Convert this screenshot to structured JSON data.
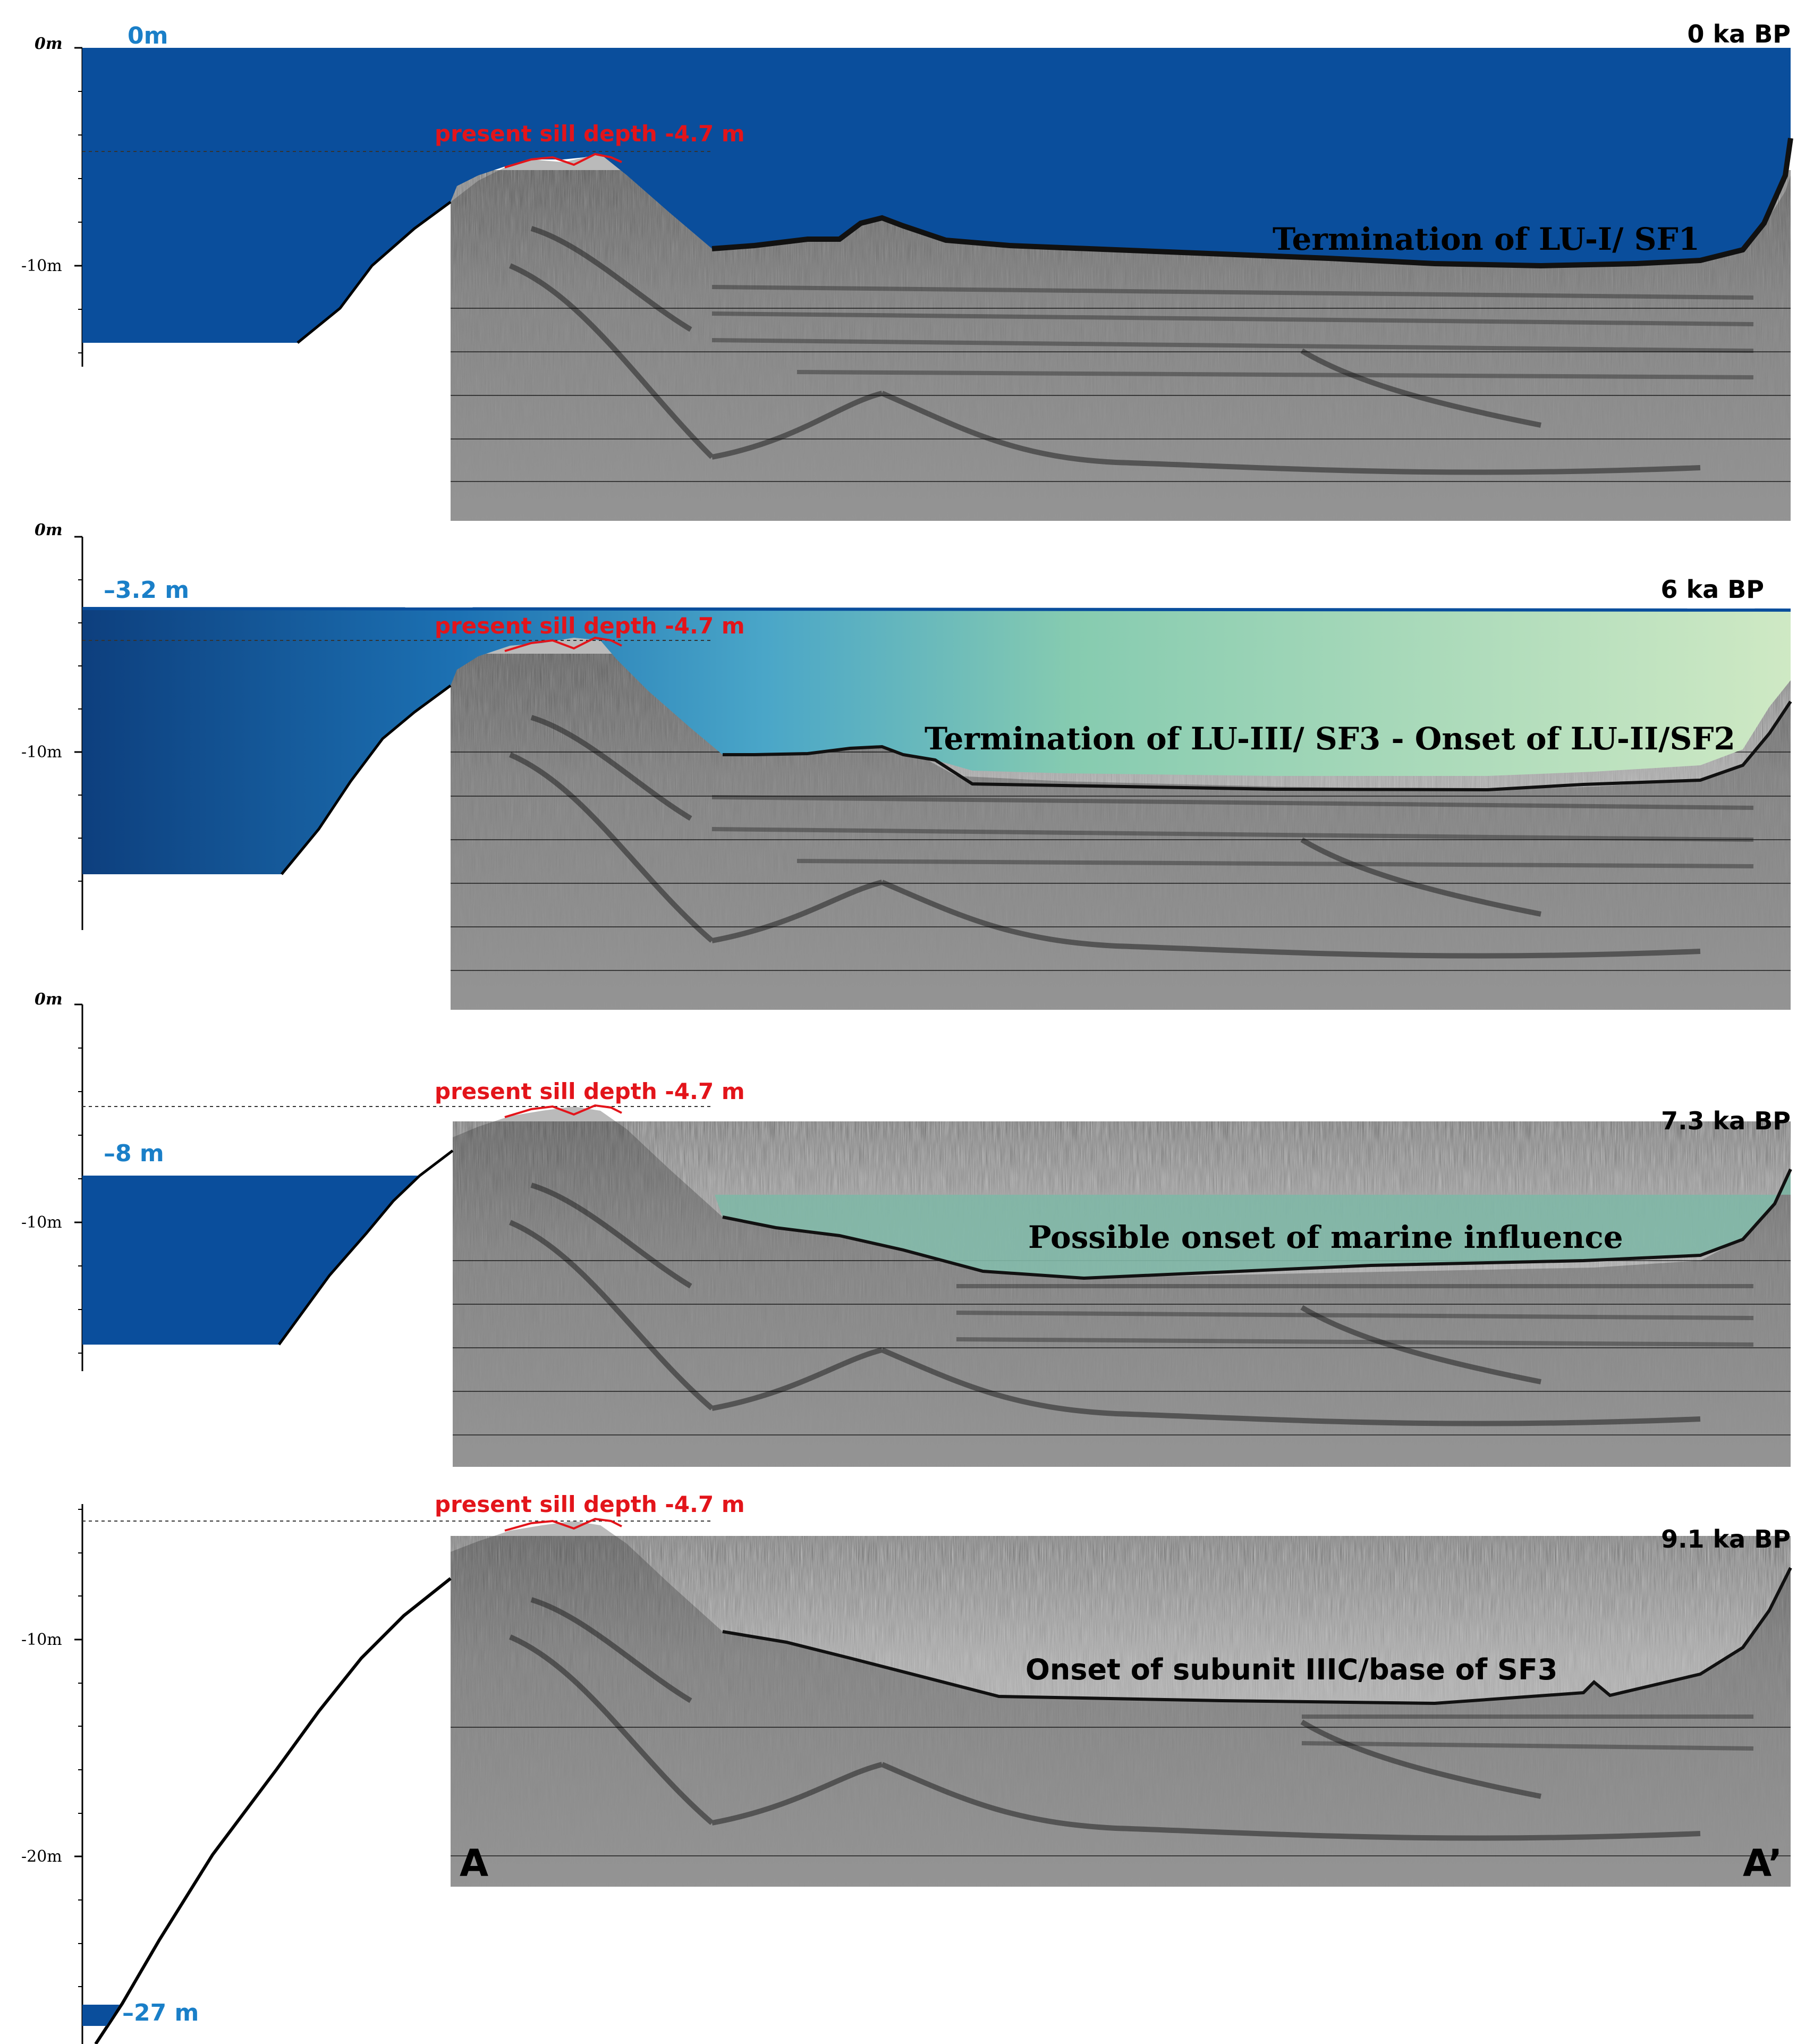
{
  "panels": [
    {
      "age": "0 ka BP",
      "sea_level_label": "0m",
      "sea_level_m": 0,
      "sill_label": "present sill depth -4.7 m",
      "annotation": "Termination of LU-I/ SF1",
      "axis_zero": "0m",
      "ticks": [
        "-10m"
      ]
    },
    {
      "age": "6 ka BP",
      "sea_level_label": "–3.2 m",
      "sea_level_m": -3.2,
      "sill_label": "present sill depth -4.7 m",
      "annotation": "Termination of LU-III/ SF3 - Onset of LU-II/SF2",
      "axis_zero": "0m",
      "ticks": [
        "-10m"
      ]
    },
    {
      "age": "7.3 ka BP",
      "sea_level_label": "–8 m",
      "sea_level_m": -8,
      "sill_label": "present sill depth -4.7 m",
      "annotation": "Possible onset of marine influence",
      "axis_zero": "0m",
      "ticks": [
        "-10m"
      ]
    },
    {
      "age": "9.1 ka BP",
      "sea_level_label": "–27 m",
      "sea_level_m": -27,
      "sill_label": "present sill depth -4.7 m",
      "annotation": "Onset of subunit IIIC/base of SF3",
      "ticks": [
        "-10m",
        "-20m"
      ]
    }
  ],
  "profile_start": "A",
  "profile_end": "A’",
  "colors": {
    "sea_deep": "#0a4e9c",
    "sea_dark": "#0d3f7e",
    "sea_teal": "#7fb7a6",
    "sea_pale_green": "#cfe9c4",
    "sill_red": "#e3141a",
    "label_blue": "#1a7fc8"
  }
}
